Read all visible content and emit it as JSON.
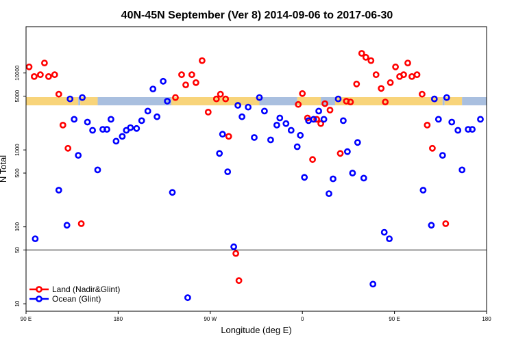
{
  "chart_data": {
    "type": "scatter",
    "title": "40N-45N September (Ver 8)   2014-09-06 to 2017-06-30",
    "xlabel": "Longitude (deg E)",
    "ylabel": "N Total",
    "y_scale": "log",
    "ylim": [
      8,
      40000
    ],
    "x_ticks": [
      {
        "value": 90,
        "label": "90 E"
      },
      {
        "value": 180,
        "label": "180"
      },
      {
        "value": 270,
        "label": "90 W"
      },
      {
        "value": 360,
        "label": "0"
      },
      {
        "value": 450,
        "label": "90 E"
      },
      {
        "value": 540,
        "label": "180"
      }
    ],
    "y_ticks": [
      {
        "value": 10,
        "label": "10"
      },
      {
        "value": 50,
        "label": "50"
      },
      {
        "value": 100,
        "label": "100"
      },
      {
        "value": 500,
        "label": "500"
      },
      {
        "value": 1000,
        "label": "1000"
      },
      {
        "value": 5000,
        "label": "5000"
      },
      {
        "value": 10000,
        "label": "10000"
      }
    ],
    "reference_line": 50,
    "legend": {
      "position": "bottom-left"
    },
    "series": [
      {
        "name": "Land (Nadir&Glint)",
        "color": "#ff0000",
        "points": [
          [
            93,
            12000
          ],
          [
            98,
            9000
          ],
          [
            104,
            9500
          ],
          [
            108,
            13500
          ],
          [
            112,
            9000
          ],
          [
            118,
            9500
          ],
          [
            122,
            5300
          ],
          [
            126,
            2100
          ],
          [
            131,
            1050
          ],
          [
            144,
            110
          ],
          [
            236,
            4800
          ],
          [
            242,
            9500
          ],
          [
            246,
            7000
          ],
          [
            252,
            9500
          ],
          [
            256,
            7500
          ],
          [
            262,
            14500
          ],
          [
            268,
            3100
          ],
          [
            276,
            4600
          ],
          [
            280,
            5300
          ],
          [
            285,
            4600
          ],
          [
            288,
            1500
          ],
          [
            295,
            45
          ],
          [
            298,
            20
          ],
          [
            356,
            3900
          ],
          [
            360,
            5400
          ],
          [
            365,
            2600
          ],
          [
            370,
            750
          ],
          [
            374,
            2500
          ],
          [
            378,
            2200
          ],
          [
            382,
            4000
          ],
          [
            387,
            3300
          ],
          [
            397,
            900
          ],
          [
            403,
            4300
          ],
          [
            407,
            4200
          ],
          [
            413,
            7200
          ],
          [
            418,
            18000
          ],
          [
            422,
            16000
          ],
          [
            427,
            14500
          ],
          [
            432,
            9500
          ],
          [
            437,
            6300
          ],
          [
            441,
            4200
          ],
          [
            446,
            7500
          ],
          [
            451,
            12000
          ],
          [
            455,
            9000
          ],
          [
            459,
            9500
          ],
          [
            463,
            13500
          ],
          [
            467,
            9000
          ],
          [
            472,
            9500
          ],
          [
            477,
            5300
          ],
          [
            482,
            2100
          ],
          [
            487,
            1050
          ],
          [
            500,
            110
          ]
        ]
      },
      {
        "name": "Ocean (Glint)",
        "color": "#0000ff",
        "points": [
          [
            99,
            70
          ],
          [
            122,
            300
          ],
          [
            130,
            105
          ],
          [
            133,
            4600
          ],
          [
            137,
            2500
          ],
          [
            141,
            850
          ],
          [
            145,
            4800
          ],
          [
            150,
            2300
          ],
          [
            155,
            1800
          ],
          [
            160,
            550
          ],
          [
            165,
            1850
          ],
          [
            169,
            1850
          ],
          [
            173,
            2500
          ],
          [
            178,
            1300
          ],
          [
            184,
            1500
          ],
          [
            188,
            1800
          ],
          [
            192,
            1950
          ],
          [
            198,
            1900
          ],
          [
            203,
            2400
          ],
          [
            209,
            3200
          ],
          [
            214,
            6200
          ],
          [
            218,
            2700
          ],
          [
            224,
            7800
          ],
          [
            228,
            4300
          ],
          [
            233,
            280
          ],
          [
            248,
            12
          ],
          [
            279,
            900
          ],
          [
            282,
            1600
          ],
          [
            287,
            520
          ],
          [
            293,
            55
          ],
          [
            297,
            3800
          ],
          [
            301,
            2700
          ],
          [
            307,
            3600
          ],
          [
            313,
            1450
          ],
          [
            318,
            4800
          ],
          [
            323,
            3200
          ],
          [
            329,
            1350
          ],
          [
            335,
            2100
          ],
          [
            338,
            2600
          ],
          [
            344,
            2200
          ],
          [
            349,
            1800
          ],
          [
            355,
            1100
          ],
          [
            358,
            1550
          ],
          [
            362,
            440
          ],
          [
            366,
            2400
          ],
          [
            371,
            2500
          ],
          [
            376,
            3200
          ],
          [
            381,
            2500
          ],
          [
            386,
            270
          ],
          [
            390,
            420
          ],
          [
            395,
            4600
          ],
          [
            400,
            2400
          ],
          [
            404,
            950
          ],
          [
            409,
            500
          ],
          [
            414,
            1250
          ],
          [
            420,
            430
          ],
          [
            429,
            18
          ],
          [
            440,
            85
          ],
          [
            445,
            70
          ],
          [
            478,
            300
          ],
          [
            486,
            105
          ],
          [
            489,
            4600
          ],
          [
            493,
            2500
          ],
          [
            497,
            850
          ],
          [
            501,
            4800
          ],
          [
            506,
            2300
          ],
          [
            512,
            1800
          ],
          [
            516,
            550
          ],
          [
            522,
            1850
          ],
          [
            526,
            1850
          ],
          [
            534,
            2500
          ]
        ]
      }
    ]
  }
}
